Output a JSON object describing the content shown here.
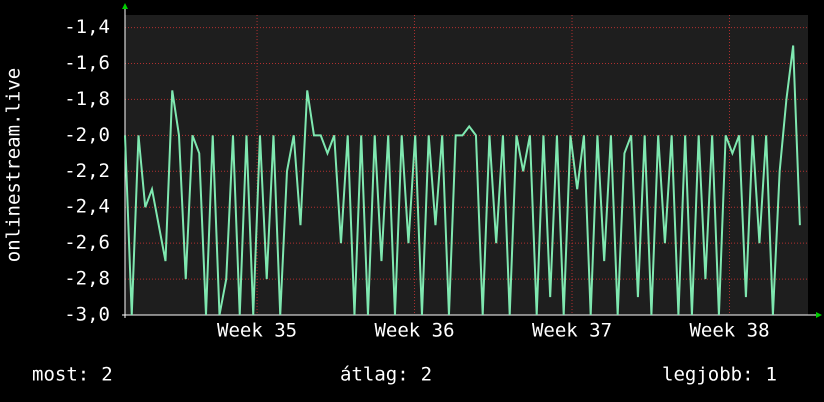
{
  "chart_data": {
    "type": "line",
    "y_label": "onlinestream.live",
    "x": [
      0,
      0.3,
      0.6,
      0.9,
      1.2,
      1.5,
      1.8,
      2.1,
      2.4,
      2.7,
      3,
      3.3,
      3.6,
      3.9,
      4.2,
      4.5,
      4.8,
      5.1,
      5.4,
      5.7,
      6,
      6.3,
      6.6,
      6.9,
      7.2,
      7.5,
      7.8,
      8.1,
      8.4,
      8.7,
      9,
      9.3,
      9.6,
      9.9,
      10.2,
      10.5,
      10.8,
      11.1,
      11.4,
      11.7,
      12,
      12.3,
      12.6,
      12.9,
      13.2,
      13.5,
      13.8,
      14.1,
      14.4,
      14.7,
      15,
      15.3,
      15.6,
      15.9,
      16.2,
      16.5,
      16.8,
      17.1,
      17.4,
      17.7,
      18,
      18.3,
      18.6,
      18.9,
      19.2,
      19.5,
      19.8,
      20.1,
      20.4,
      20.7,
      21,
      21.3,
      21.6,
      21.9,
      22.2,
      22.5,
      22.8,
      23.1,
      23.4,
      23.7,
      24,
      24.3,
      24.6,
      24.9,
      25.2,
      25.5,
      25.8,
      26.1,
      26.4,
      26.7,
      27,
      27.3,
      27.6,
      27.9,
      28.2,
      28.5,
      28.8,
      29.1,
      29.4,
      29.7,
      30
    ],
    "series": [
      {
        "color": "#7fe8b0",
        "values": [
          -2.0,
          -3.0,
          -2.0,
          -2.4,
          -2.3,
          -2.5,
          -2.7,
          -1.75,
          -2.0,
          -2.8,
          -2.0,
          -2.1,
          -3.0,
          -2.0,
          -3.0,
          -2.8,
          -2.0,
          -3.0,
          -2.0,
          -3.0,
          -2.0,
          -2.8,
          -2.0,
          -3.0,
          -2.2,
          -2.0,
          -2.5,
          -1.75,
          -2.0,
          -2.0,
          -2.1,
          -2.0,
          -2.6,
          -2.0,
          -3.0,
          -2.0,
          -3.0,
          -2.0,
          -2.7,
          -2.0,
          -3.0,
          -2.0,
          -2.6,
          -2.0,
          -3.0,
          -2.0,
          -2.5,
          -2.0,
          -3.0,
          -2.0,
          -2.0,
          -1.95,
          -2.0,
          -3.0,
          -2.0,
          -2.6,
          -2.0,
          -3.0,
          -2.0,
          -2.2,
          -2.0,
          -3.0,
          -2.0,
          -2.9,
          -2.0,
          -3.0,
          -2.0,
          -2.3,
          -2.0,
          -3.0,
          -2.0,
          -2.7,
          -2.0,
          -3.0,
          -2.1,
          -2.0,
          -2.9,
          -2.0,
          -3.0,
          -2.0,
          -2.6,
          -2.0,
          -3.0,
          -2.0,
          -3.0,
          -2.0,
          -2.8,
          -2.0,
          -3.0,
          -2.0,
          -2.1,
          -2.0,
          -2.9,
          -2.0,
          -2.6,
          -2.0,
          -3.0,
          -2.2,
          -1.8,
          -1.5,
          -2.5
        ]
      }
    ],
    "xlim": [
      0,
      30.36
    ],
    "xticks": [
      {
        "value": 5.87,
        "label": "Week 35"
      },
      {
        "value": 12.87,
        "label": "Week 36"
      },
      {
        "value": 19.87,
        "label": "Week 37"
      },
      {
        "value": 26.87,
        "label": "Week 38"
      }
    ],
    "ylim": [
      -3.0,
      -1.33
    ],
    "yticks": [
      {
        "value": -3.0,
        "label": "-3,0"
      },
      {
        "value": -2.8,
        "label": "-2,8"
      },
      {
        "value": -2.6,
        "label": "-2,6"
      },
      {
        "value": -2.4,
        "label": "-2,4"
      },
      {
        "value": -2.2,
        "label": "-2,2"
      },
      {
        "value": -2.0,
        "label": "-2,0"
      },
      {
        "value": -1.8,
        "label": "-1,8"
      },
      {
        "value": -1.6,
        "label": "-1,6"
      },
      {
        "value": -1.4,
        "label": "-1,4"
      }
    ],
    "grid": true,
    "legend_stats": [
      {
        "label": "most:",
        "value": 2
      },
      {
        "label": "átlag:",
        "value": 2
      },
      {
        "label": "legjobb:",
        "value": 1
      }
    ]
  }
}
